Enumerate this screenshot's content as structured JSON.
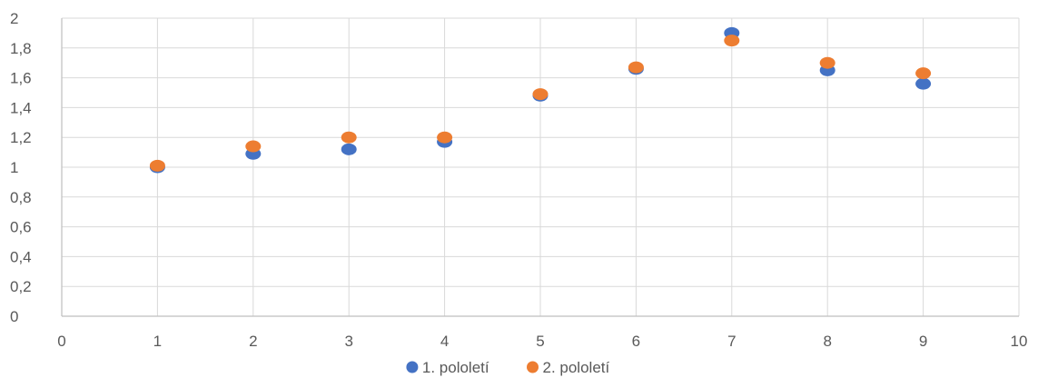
{
  "chart_data": {
    "type": "scatter",
    "title": "",
    "xlabel": "",
    "ylabel": "",
    "xlim": [
      0,
      10
    ],
    "ylim": [
      0,
      2
    ],
    "x_ticks": [
      "0",
      "1",
      "2",
      "3",
      "4",
      "5",
      "6",
      "7",
      "8",
      "9",
      "10"
    ],
    "y_ticks": [
      "0",
      "0,2",
      "0,4",
      "0,6",
      "0,8",
      "1",
      "1,2",
      "1,4",
      "1,6",
      "1,8",
      "2"
    ],
    "grid": true,
    "legend_position": "bottom",
    "series": [
      {
        "name": "1. pololetí",
        "color": "#4472C4",
        "points": [
          {
            "x": 1,
            "y": 1.0
          },
          {
            "x": 2,
            "y": 1.09
          },
          {
            "x": 3,
            "y": 1.12
          },
          {
            "x": 4,
            "y": 1.17
          },
          {
            "x": 5,
            "y": 1.48
          },
          {
            "x": 6,
            "y": 1.66
          },
          {
            "x": 7,
            "y": 1.9
          },
          {
            "x": 8,
            "y": 1.65
          },
          {
            "x": 9,
            "y": 1.56
          }
        ]
      },
      {
        "name": "2. pololetí",
        "color": "#ED7D31",
        "points": [
          {
            "x": 1,
            "y": 1.01
          },
          {
            "x": 2,
            "y": 1.14
          },
          {
            "x": 3,
            "y": 1.2
          },
          {
            "x": 4,
            "y": 1.2
          },
          {
            "x": 5,
            "y": 1.49
          },
          {
            "x": 6,
            "y": 1.67
          },
          {
            "x": 7,
            "y": 1.85
          },
          {
            "x": 8,
            "y": 1.7
          },
          {
            "x": 9,
            "y": 1.63
          }
        ]
      }
    ]
  }
}
